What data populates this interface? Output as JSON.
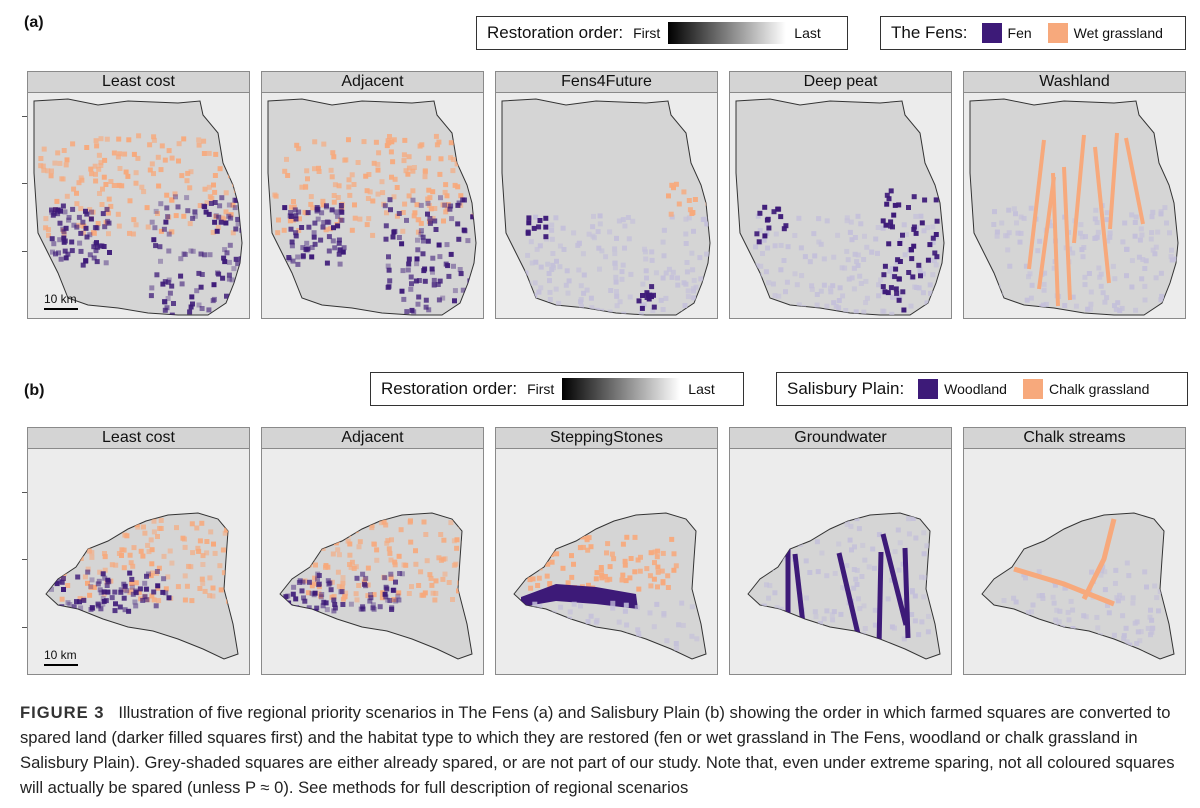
{
  "colors": {
    "fen": "#3d1a78",
    "wet_grassland": "#f7a97c",
    "woodland": "#3d1a78",
    "chalk_grassland": "#f7a97c",
    "panel_bg": "#ececec",
    "land": "#d5d5d5",
    "lavender": "#c4c0da"
  },
  "part_a": {
    "label": "(a)",
    "order_legend": {
      "title": "Restoration order:",
      "first": "First",
      "last": "Last"
    },
    "habitat_legend": {
      "title": "The Fens:",
      "items": [
        "Fen",
        "Wet grassland"
      ]
    },
    "panels": [
      "Least cost",
      "Adjacent",
      "Fens4Future",
      "Deep peat",
      "Washland"
    ],
    "scale": "10 km"
  },
  "part_b": {
    "label": "(b)",
    "order_legend": {
      "title": "Restoration order:",
      "first": "First",
      "last": "Last"
    },
    "habitat_legend": {
      "title": "Salisbury Plain:",
      "items": [
        "Woodland",
        "Chalk grassland"
      ]
    },
    "panels": [
      "Least cost",
      "Adjacent",
      "SteppingStones",
      "Groundwater",
      "Chalk streams"
    ],
    "scale": "10 km"
  },
  "caption": {
    "fig": "FIGURE 3",
    "text": "Illustration of five regional priority scenarios in The Fens (a) and Salisbury Plain (b) showing the order in which farmed squares are converted to spared land (darker filled squares first) and the habitat type to which they are restored (fen or wet grassland in The Fens, woodland or chalk grassland in Salisbury Plain). Grey-shaded squares are either already spared, or are not part of our study. Note that, even under extreme sparing, not all coloured squares will actually be spared (unless P ≈ 0). See methods for full description of regional scenarios"
  }
}
